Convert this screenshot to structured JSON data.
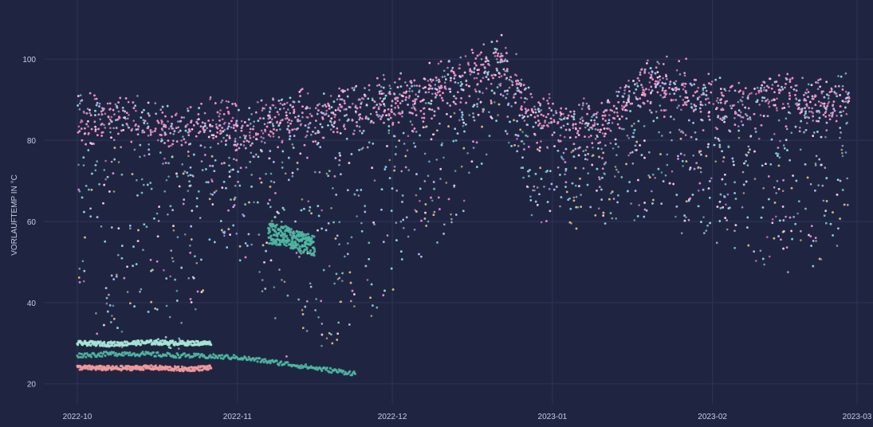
{
  "colors": {
    "background": "#1f2541",
    "grid": "#2c3456",
    "text": "#c7cce0",
    "series": [
      "#f28cc4",
      "#f6c3e2",
      "#a9b6f0",
      "#8fd0d6",
      "#6fb7b0",
      "#d4b57a",
      "#e07fd6",
      "#7fc9e6"
    ],
    "trace_teal": "#4fb9a2",
    "trace_mint": "#a9e6d8",
    "trace_salmon": "#f29a9a"
  },
  "chart_data": {
    "type": "scatter",
    "title": "",
    "xlabel": "",
    "ylabel": "VORLAUFTEMP IN °C",
    "xlim": [
      "2022-10-01",
      "2023-03-01"
    ],
    "ylim": [
      17,
      113
    ],
    "grid": true,
    "legend": "none",
    "x_ticks": [
      "2022-10",
      "2022-11",
      "2022-12",
      "2023-01",
      "2023-02",
      "2023-03"
    ],
    "y_ticks": [
      20,
      40,
      60,
      80,
      100
    ],
    "upper_band": {
      "x": [
        "2022-10-01",
        "2022-10-10",
        "2022-10-20",
        "2022-10-27",
        "2022-11-03",
        "2022-11-10",
        "2022-11-16",
        "2022-11-22",
        "2022-12-01",
        "2022-12-08",
        "2022-12-15",
        "2022-12-22",
        "2022-12-28",
        "2023-01-05",
        "2023-01-12",
        "2023-01-20",
        "2023-01-28",
        "2023-02-05",
        "2023-02-12",
        "2023-02-20",
        "2023-02-27"
      ],
      "median": [
        86,
        84,
        83,
        84,
        82,
        87,
        85,
        88,
        89,
        91,
        96,
        100,
        86,
        84,
        85,
        94,
        91,
        88,
        92,
        89,
        90
      ],
      "max": [
        93,
        92,
        90,
        91,
        90,
        96,
        95,
        100,
        98,
        104,
        107,
        111,
        95,
        93,
        93,
        103,
        100,
        98,
        103,
        100,
        110
      ]
    },
    "lower_band": {
      "x": [
        "2022-10-01",
        "2022-10-26",
        "2022-10-27",
        "2022-11-07",
        "2022-11-08",
        "2022-11-22",
        "2022-12-01",
        "2022-12-15",
        "2022-12-22",
        "2022-12-28",
        "2023-01-10",
        "2023-01-20",
        "2023-02-01",
        "2023-02-15",
        "2023-02-27"
      ],
      "min": [
        28,
        28,
        55,
        40,
        25,
        30,
        40,
        62,
        85,
        60,
        55,
        58,
        55,
        45,
        48
      ]
    },
    "low_traces": [
      {
        "x": [
          "2022-10-01",
          "2022-10-08",
          "2022-10-15",
          "2022-10-22",
          "2022-10-27"
        ],
        "y": [
          24,
          23.8,
          24,
          23.6,
          24
        ]
      },
      {
        "x": [
          "2022-10-01",
          "2022-10-08",
          "2022-10-15",
          "2022-10-22",
          "2022-10-27"
        ],
        "y": [
          30,
          29.8,
          30.2,
          30,
          30
        ]
      },
      {
        "x": [
          "2022-10-01",
          "2022-10-10",
          "2022-10-20",
          "2022-11-01",
          "2022-11-10",
          "2022-11-18",
          "2022-11-24"
        ],
        "y": [
          27,
          27.5,
          27,
          26.5,
          25,
          23.5,
          22.5
        ]
      },
      {
        "x": [
          "2022-11-07",
          "2022-11-10",
          "2022-11-13",
          "2022-11-16"
        ],
        "y": [
          57,
          56.5,
          55,
          54
        ]
      }
    ]
  }
}
